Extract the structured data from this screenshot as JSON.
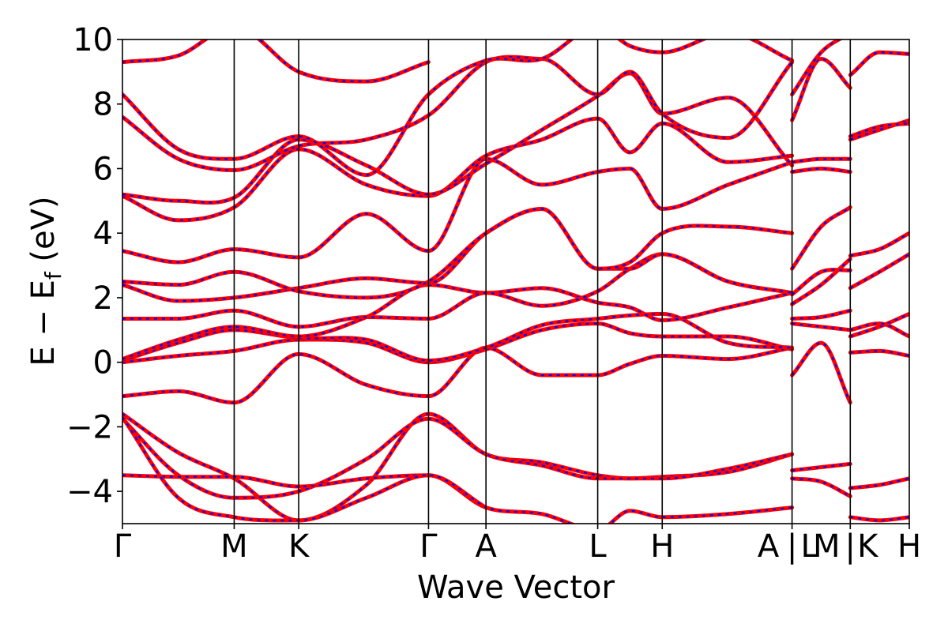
{
  "chart_data": {
    "type": "line",
    "title": "",
    "xlabel": "Wave Vector",
    "ylabel": "E − E_f (eV)",
    "ylabel_main": "E  −  E",
    "ylabel_sub": "f",
    "ylabel_unit": "(eV)",
    "ylim": [
      -5,
      10
    ],
    "yticks": [
      -4,
      -2,
      0,
      2,
      4,
      6,
      8,
      10
    ],
    "ytick_labels": [
      "−4",
      "−2",
      "0",
      "2",
      "4",
      "6",
      "8",
      "10"
    ],
    "grid": false,
    "legend": "none",
    "colors": {
      "calc_a": "#ff0000",
      "calc_b": "#0000ff",
      "axes": "#000000"
    },
    "high_symmetry_points": [
      {
        "label": "Γ",
        "x": 0.0
      },
      {
        "label": "M",
        "x": 0.142
      },
      {
        "label": "K",
        "x": 0.224
      },
      {
        "label": "Γ",
        "x": 0.389
      },
      {
        "label": "A",
        "x": 0.462
      },
      {
        "label": "L",
        "x": 0.604
      },
      {
        "label": "H",
        "x": 0.686
      },
      {
        "label": "A",
        "x": 0.851
      },
      {
        "label": "|",
        "x": 0.851
      },
      {
        "label": "L",
        "x": 0.851
      },
      {
        "label": "M",
        "x": 0.925
      },
      {
        "label": "|",
        "x": 0.925
      },
      {
        "label": "K",
        "x": 0.925
      },
      {
        "label": "H",
        "x": 1.0
      }
    ],
    "segment_boundaries": [
      0.0,
      0.142,
      0.224,
      0.389,
      0.462,
      0.604,
      0.686,
      0.851,
      0.925,
      1.0
    ],
    "bands": [
      {
        "x": [
          0.0,
          0.071,
          0.142,
          0.224,
          0.31,
          0.389,
          0.462,
          0.533,
          0.604,
          0.645,
          0.686,
          0.77,
          0.851
        ],
        "y": [
          -1.05,
          -0.9,
          -1.25,
          0.25,
          -0.7,
          -1.05,
          0.45,
          -0.4,
          -0.4,
          -0.05,
          0.2,
          0.1,
          0.45
        ]
      },
      {
        "x": [
          0.851,
          0.888,
          0.925
        ],
        "y": [
          -0.4,
          0.6,
          -1.25
        ]
      },
      {
        "x": [
          0.925,
          0.962,
          1.0
        ],
        "y": [
          0.3,
          0.35,
          0.2
        ]
      },
      {
        "x": [
          0.0,
          0.071,
          0.142,
          0.224,
          0.31,
          0.389,
          0.462,
          0.533,
          0.604,
          0.645,
          0.686,
          0.77,
          0.851
        ],
        "y": [
          0.0,
          0.2,
          0.35,
          0.7,
          0.6,
          0.0,
          0.4,
          1.0,
          1.2,
          0.9,
          0.8,
          0.8,
          0.4
        ]
      },
      {
        "x": [
          0.0,
          0.071,
          0.142,
          0.224,
          0.31,
          0.389,
          0.462,
          0.533,
          0.604,
          0.645,
          0.686,
          0.77,
          0.851
        ],
        "y": [
          0.05,
          0.6,
          1.0,
          0.75,
          0.7,
          0.05,
          0.45,
          1.15,
          1.35,
          1.45,
          1.5,
          0.6,
          0.45
        ]
      },
      {
        "x": [
          0.0,
          0.071,
          0.142,
          0.224,
          0.31,
          0.389,
          0.462,
          0.533,
          0.604,
          0.645,
          0.686,
          0.77,
          0.851
        ],
        "y": [
          0.1,
          0.7,
          1.1,
          0.8,
          1.4,
          2.4,
          2.15,
          2.3,
          1.85,
          1.7,
          1.3,
          1.7,
          2.15
        ]
      },
      {
        "x": [
          0.0,
          0.071,
          0.142,
          0.224,
          0.31,
          0.389,
          0.462,
          0.533,
          0.604,
          0.645,
          0.686,
          0.77,
          0.851
        ],
        "y": [
          1.35,
          1.35,
          1.6,
          1.1,
          1.4,
          1.35,
          2.15,
          1.75,
          2.2,
          2.9,
          3.35,
          2.5,
          2.15
        ]
      },
      {
        "x": [
          0.0,
          0.071,
          0.142,
          0.224,
          0.31,
          0.389,
          0.462,
          0.533,
          0.604,
          0.645,
          0.686,
          0.77,
          0.851
        ],
        "y": [
          2.4,
          1.9,
          2.0,
          2.3,
          2.6,
          2.45,
          4.0,
          4.75,
          2.9,
          2.9,
          3.35,
          2.5,
          2.15
        ]
      },
      {
        "x": [
          0.0,
          0.071,
          0.142,
          0.224,
          0.31,
          0.389,
          0.462,
          0.533,
          0.604,
          0.645,
          0.686,
          0.77,
          0.851
        ],
        "y": [
          2.5,
          2.4,
          2.8,
          2.2,
          2.0,
          2.5,
          4.0,
          4.75,
          2.9,
          3.1,
          4.0,
          4.2,
          4.0
        ]
      },
      {
        "x": [
          0.0,
          0.071,
          0.142,
          0.224,
          0.31,
          0.389,
          0.462,
          0.533,
          0.604,
          0.645,
          0.686,
          0.77,
          0.851
        ],
        "y": [
          3.45,
          3.1,
          3.5,
          3.25,
          4.6,
          3.45,
          6.3,
          5.5,
          5.9,
          6.0,
          4.75,
          5.5,
          6.2
        ]
      },
      {
        "x": [
          0.0,
          0.071,
          0.142,
          0.224,
          0.31,
          0.389,
          0.462,
          0.533,
          0.604,
          0.645,
          0.686,
          0.77,
          0.851
        ],
        "y": [
          5.15,
          4.4,
          4.8,
          6.6,
          5.5,
          5.15,
          6.4,
          6.9,
          7.55,
          6.5,
          7.4,
          6.2,
          6.4
        ]
      },
      {
        "x": [
          0.0,
          0.071,
          0.142,
          0.224,
          0.31,
          0.389,
          0.462,
          0.533,
          0.604,
          0.645,
          0.686,
          0.77,
          0.851
        ],
        "y": [
          5.2,
          5.0,
          5.1,
          6.9,
          6.1,
          5.2,
          6.15,
          7.2,
          8.25,
          8.95,
          7.7,
          8.2,
          6.1
        ]
      },
      {
        "x": [
          0.0,
          0.071,
          0.142,
          0.224,
          0.31,
          0.389,
          0.462,
          0.533,
          0.604,
          0.645,
          0.686,
          0.77,
          0.851
        ],
        "y": [
          7.6,
          6.3,
          5.95,
          6.7,
          6.9,
          7.65,
          9.3,
          9.4,
          8.3,
          9.0,
          7.7,
          6.95,
          9.3
        ]
      },
      {
        "x": [
          0.0,
          0.071,
          0.142,
          0.224,
          0.31,
          0.389,
          0.462,
          0.533,
          0.604,
          0.645,
          0.686,
          0.77,
          0.851
        ],
        "y": [
          8.3,
          6.6,
          6.3,
          7.0,
          5.8,
          8.3,
          9.35,
          9.4,
          10.4,
          9.8,
          9.6,
          10.2,
          9.35
        ]
      },
      {
        "x": [
          0.0,
          0.071,
          0.142,
          0.224,
          0.31,
          0.389
        ],
        "y": [
          9.3,
          9.5,
          10.4,
          9.0,
          8.7,
          9.3
        ]
      },
      {
        "x": [
          0.0,
          0.071,
          0.142,
          0.224,
          0.31,
          0.389,
          0.462,
          0.533,
          0.604,
          0.645,
          0.686,
          0.77,
          0.851
        ],
        "y": [
          -1.6,
          -2.8,
          -3.6,
          -4.9,
          -3.8,
          -1.6,
          -2.85,
          -3.1,
          -3.5,
          -3.6,
          -3.55,
          -3.4,
          -2.85
        ]
      },
      {
        "x": [
          0.0,
          0.071,
          0.142,
          0.224,
          0.31,
          0.389,
          0.462,
          0.533,
          0.604,
          0.645,
          0.686,
          0.77,
          0.851
        ],
        "y": [
          -1.75,
          -3.5,
          -4.2,
          -4.0,
          -3.0,
          -1.75,
          -2.85,
          -3.2,
          -3.6,
          -3.6,
          -3.6,
          -3.3,
          -2.85
        ]
      },
      {
        "x": [
          0.0,
          0.071,
          0.142,
          0.224,
          0.31,
          0.389,
          0.462,
          0.533,
          0.604,
          0.645,
          0.686,
          0.77,
          0.851
        ],
        "y": [
          -3.5,
          -3.55,
          -3.55,
          -3.85,
          -3.6,
          -3.5,
          -4.5,
          -4.7,
          -5.2,
          -4.6,
          -4.8,
          -4.7,
          -4.5
        ]
      },
      {
        "x": [
          0.0,
          0.071,
          0.142,
          0.224,
          0.31,
          0.389,
          0.462
        ],
        "y": [
          -1.7,
          -4.2,
          -4.8,
          -4.9,
          -4.2,
          -3.5,
          -4.5
        ]
      },
      {
        "x": [
          0.851,
          0.888,
          0.925
        ],
        "y": [
          -3.35,
          -3.25,
          -3.15
        ]
      },
      {
        "x": [
          0.851,
          0.888,
          0.925
        ],
        "y": [
          -3.6,
          -3.7,
          -4.15
        ]
      },
      {
        "x": [
          0.851,
          0.888,
          0.925
        ],
        "y": [
          1.2,
          1.1,
          1.0
        ]
      },
      {
        "x": [
          0.851,
          0.888,
          0.925
        ],
        "y": [
          1.35,
          1.4,
          1.6
        ]
      },
      {
        "x": [
          0.851,
          0.888,
          0.925
        ],
        "y": [
          1.8,
          2.4,
          3.2
        ]
      },
      {
        "x": [
          0.851,
          0.888,
          0.925
        ],
        "y": [
          2.1,
          2.8,
          2.85
        ]
      },
      {
        "x": [
          0.851,
          0.888,
          0.925
        ],
        "y": [
          2.9,
          4.2,
          4.8
        ]
      },
      {
        "x": [
          0.851,
          0.888,
          0.925
        ],
        "y": [
          5.9,
          6.0,
          5.9
        ]
      },
      {
        "x": [
          0.851,
          0.888,
          0.925
        ],
        "y": [
          6.2,
          6.3,
          6.3
        ]
      },
      {
        "x": [
          0.851,
          0.888,
          0.925
        ],
        "y": [
          7.5,
          9.4,
          8.5
        ]
      },
      {
        "x": [
          0.851,
          0.888,
          0.925
        ],
        "y": [
          8.3,
          9.6,
          10.2
        ]
      },
      {
        "x": [
          0.925,
          0.962,
          1.0
        ],
        "y": [
          0.8,
          1.1,
          1.5
        ]
      },
      {
        "x": [
          0.925,
          0.962,
          1.0
        ],
        "y": [
          1.0,
          1.2,
          0.8
        ]
      },
      {
        "x": [
          0.925,
          0.962,
          1.0
        ],
        "y": [
          2.3,
          2.8,
          3.35
        ]
      },
      {
        "x": [
          0.925,
          0.962,
          1.0
        ],
        "y": [
          3.3,
          3.5,
          4.0
        ]
      },
      {
        "x": [
          0.925,
          0.962,
          1.0
        ],
        "y": [
          6.9,
          7.2,
          7.5
        ]
      },
      {
        "x": [
          0.925,
          0.962,
          1.0
        ],
        "y": [
          7.0,
          7.3,
          7.4
        ]
      },
      {
        "x": [
          0.925,
          0.962,
          1.0
        ],
        "y": [
          8.9,
          9.6,
          9.55
        ]
      },
      {
        "x": [
          0.925,
          0.962,
          1.0
        ],
        "y": [
          -3.9,
          -3.8,
          -3.6
        ]
      },
      {
        "x": [
          0.925,
          0.962,
          1.0
        ],
        "y": [
          -4.8,
          -4.9,
          -4.8
        ]
      }
    ]
  }
}
